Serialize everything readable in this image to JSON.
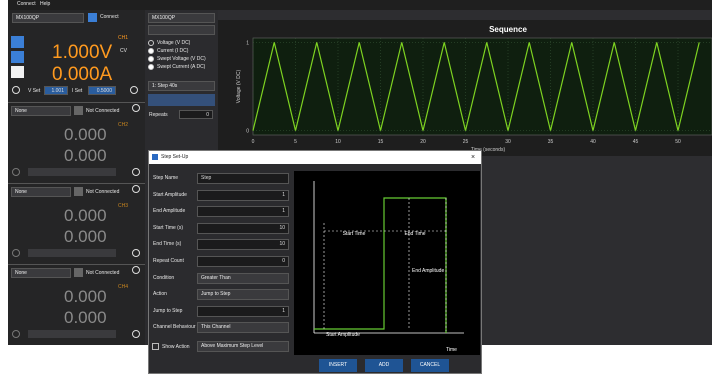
{
  "menu": [
    "Connect",
    "Help"
  ],
  "left": {
    "device": "MX100QP",
    "connect": "Connect",
    "ch1": {
      "label": "CH1",
      "voltage": "1.000V",
      "mode": "CV",
      "current": "0.000A",
      "vset_label": "V Set",
      "vset": "1.001",
      "iset_label": "I Set",
      "iset": "0.5000"
    },
    "channels": [
      {
        "source": "None",
        "status": "Not Connected",
        "label": "CH2",
        "voltage": "0.000",
        "current": "0.000"
      },
      {
        "source": "None",
        "status": "Not Connected",
        "label": "CH3",
        "voltage": "0.000",
        "current": "0.000"
      },
      {
        "source": "None",
        "status": "Not Connected",
        "label": "CH4",
        "voltage": "0.000",
        "current": "0.000"
      }
    ]
  },
  "middle": {
    "device": "MX100QP",
    "modes": [
      "Voltage (V DC)",
      "Current (I DC)",
      "Swept Voltage (V DC)",
      "Swept Current (A DC)"
    ],
    "sequence": "1: Step 40s",
    "repeats_label": "Repeats",
    "repeats": "0"
  },
  "chart": {
    "type": "line",
    "title": "Sequence",
    "x_label": "Time (seconds)",
    "y_label": "Voltage (V DC)",
    "x": [
      0,
      2.5,
      5,
      7.5,
      10,
      12.5,
      15,
      17.5,
      20,
      22.5,
      25,
      27.5,
      30,
      32.5,
      35,
      37.5,
      40,
      42.5,
      45,
      47.5,
      50,
      52.5
    ],
    "values": [
      0,
      1,
      0,
      1,
      0,
      1,
      0,
      1,
      0,
      1,
      0,
      1,
      0,
      1,
      0,
      1,
      0,
      1,
      0,
      1,
      0,
      1
    ],
    "color": "#7ed321",
    "xlim": [
      0,
      54
    ],
    "ylim": [
      -0.05,
      1.05
    ],
    "xticks": [
      0,
      5,
      10,
      15,
      20,
      25,
      30,
      35,
      40,
      45,
      50
    ],
    "yticks": [
      0,
      1
    ],
    "grid": true
  },
  "dialog": {
    "title": "Step Set-Up",
    "fields": [
      {
        "label": "Step Name",
        "value": "Step"
      },
      {
        "label": "Start Amplitude",
        "value": "1"
      },
      {
        "label": "End Amplitude",
        "value": "1"
      },
      {
        "label": "Start Time (s)",
        "value": "10"
      },
      {
        "label": "End Time (s)",
        "value": "10"
      },
      {
        "label": "Repeat Count",
        "value": "0"
      },
      {
        "label": "Condition",
        "value": "Greater Than"
      },
      {
        "label": "Action",
        "value": "Jump to Step"
      },
      {
        "label": "Jump to Step",
        "value": "1"
      },
      {
        "label": "Channel Behaviour",
        "value": "This Channel"
      }
    ],
    "show_action": "Show Action",
    "show_action_value": "Above Maximum Step Level",
    "diagram": {
      "start_time": "Start Time",
      "end_time": "End Time",
      "end_amplitude": "End Amplitude",
      "start_amplitude": "Start Amplitude",
      "time": "Time"
    },
    "buttons": [
      "INSERT",
      "ADD",
      "CANCEL"
    ]
  }
}
